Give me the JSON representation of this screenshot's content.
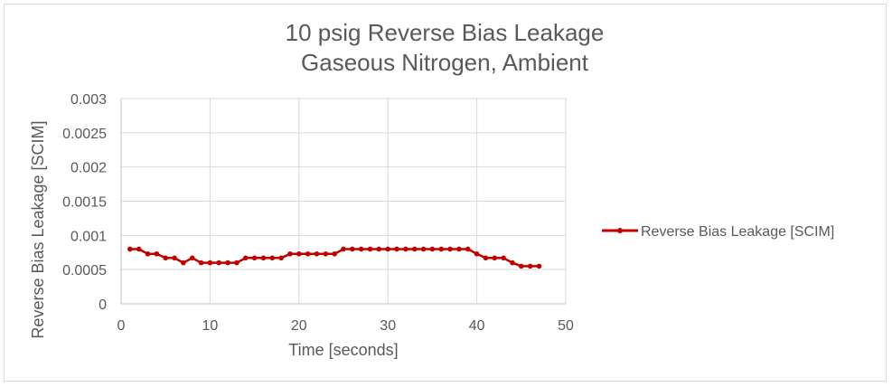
{
  "chart_data": {
    "type": "line",
    "title": [
      "10 psig Reverse Bias Leakage",
      "Gaseous Nitrogen, Ambient"
    ],
    "xlabel": "Time [seconds]",
    "ylabel": "Reverse Bias Leakage [SCIM]",
    "xlim": [
      0,
      50
    ],
    "ylim": [
      0,
      0.003
    ],
    "x_ticks": [
      "0",
      "10",
      "20",
      "30",
      "40",
      "50"
    ],
    "y_ticks": [
      "0",
      "0.0005",
      "0.001",
      "0.0015",
      "0.002",
      "0.0025",
      "0.003"
    ],
    "grid": true,
    "legend_position": "right",
    "series": [
      {
        "name": "Reverse Bias Leakage [SCIM]",
        "color": "#c00000",
        "x": [
          1,
          2,
          3,
          4,
          5,
          6,
          7,
          8,
          9,
          10,
          11,
          12,
          13,
          14,
          15,
          16,
          17,
          18,
          19,
          20,
          21,
          22,
          23,
          24,
          25,
          26,
          27,
          28,
          29,
          30,
          31,
          32,
          33,
          34,
          35,
          36,
          37,
          38,
          39,
          40,
          41,
          42,
          43,
          44,
          45,
          46,
          47
        ],
        "y": [
          0.0008,
          0.0008,
          0.00073,
          0.00073,
          0.00067,
          0.00067,
          0.0006,
          0.00067,
          0.0006,
          0.0006,
          0.0006,
          0.0006,
          0.0006,
          0.00067,
          0.00067,
          0.00067,
          0.00067,
          0.00067,
          0.00073,
          0.00073,
          0.00073,
          0.00073,
          0.00073,
          0.00073,
          0.0008,
          0.0008,
          0.0008,
          0.0008,
          0.0008,
          0.0008,
          0.0008,
          0.0008,
          0.0008,
          0.0008,
          0.0008,
          0.0008,
          0.0008,
          0.0008,
          0.0008,
          0.00073,
          0.00067,
          0.00067,
          0.00067,
          0.0006,
          0.00055,
          0.00055,
          0.00055
        ]
      }
    ]
  }
}
